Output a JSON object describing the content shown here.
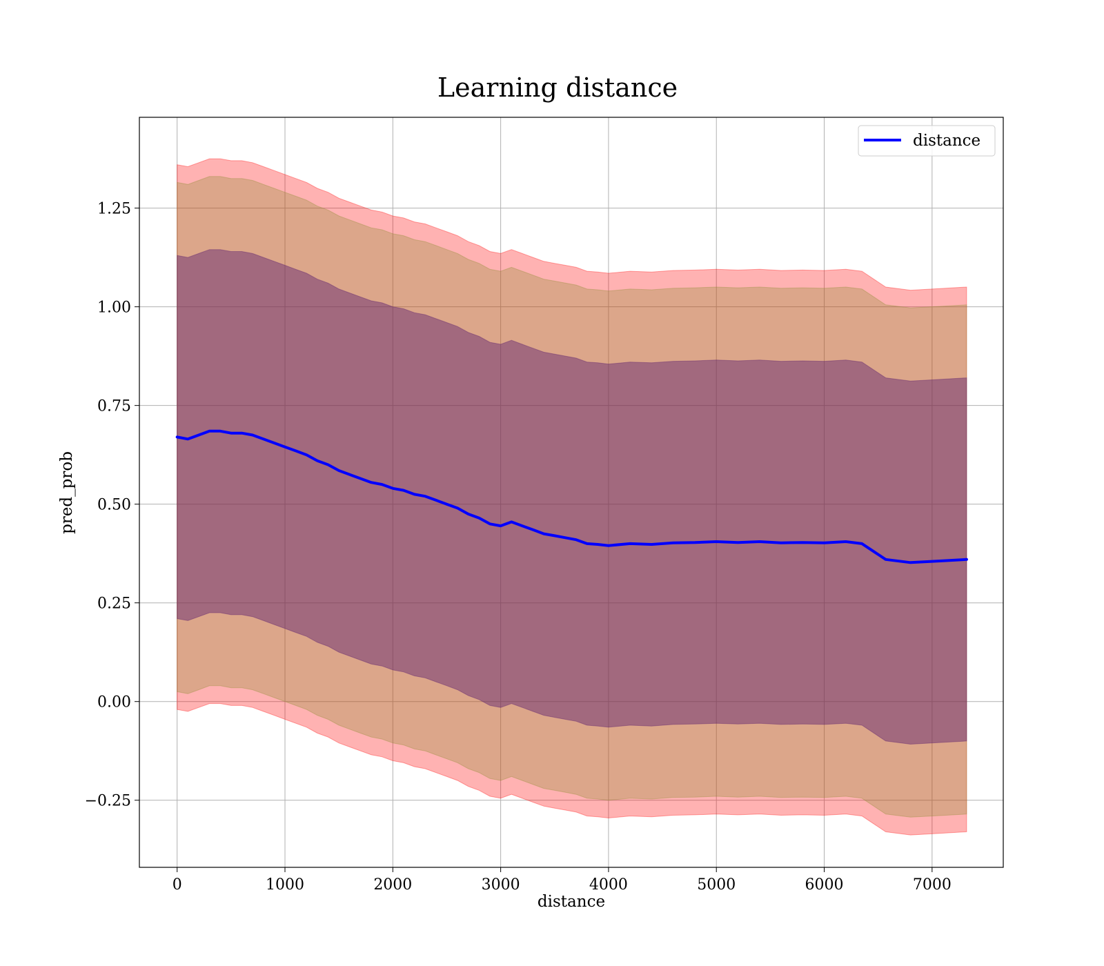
{
  "chart_data": {
    "type": "line",
    "title": "Learning distance",
    "xlabel": "distance",
    "ylabel": "pred_prob",
    "xlim": [
      -350,
      7660
    ],
    "ylim": [
      -0.42,
      1.48
    ],
    "xticks": [
      0,
      1000,
      2000,
      3000,
      4000,
      5000,
      6000,
      7000
    ],
    "yticks": [
      -0.25,
      0.0,
      0.25,
      0.5,
      0.75,
      1.0,
      1.25
    ],
    "ytick_labels": [
      "−0.25",
      "0.00",
      "0.25",
      "0.50",
      "0.75",
      "1.00",
      "1.25"
    ],
    "grid": true,
    "legend": {
      "position": "top-right",
      "entries": [
        "distance"
      ]
    },
    "colors": {
      "line": "#0000ff",
      "band_outer": "#ff0000",
      "band_mid": "#8c8c30",
      "band_inner": "#5a1e6e"
    },
    "x": [
      0,
      100,
      200,
      300,
      400,
      500,
      600,
      700,
      800,
      900,
      1000,
      1100,
      1200,
      1300,
      1400,
      1500,
      1600,
      1700,
      1800,
      1900,
      2000,
      2100,
      2200,
      2300,
      2400,
      2500,
      2600,
      2700,
      2800,
      2900,
      3000,
      3100,
      3200,
      3300,
      3400,
      3500,
      3600,
      3700,
      3800,
      3900,
      4000,
      4200,
      4400,
      4600,
      4800,
      5000,
      5200,
      5400,
      5600,
      5800,
      6000,
      6200,
      6350,
      6570,
      6800,
      7000,
      7320
    ],
    "series": [
      {
        "name": "distance",
        "values": [
          0.67,
          0.665,
          0.675,
          0.685,
          0.685,
          0.68,
          0.68,
          0.675,
          0.665,
          0.655,
          0.645,
          0.635,
          0.625,
          0.61,
          0.6,
          0.585,
          0.575,
          0.565,
          0.555,
          0.55,
          0.54,
          0.535,
          0.525,
          0.52,
          0.51,
          0.5,
          0.49,
          0.475,
          0.465,
          0.45,
          0.445,
          0.455,
          0.445,
          0.435,
          0.425,
          0.42,
          0.415,
          0.41,
          0.4,
          0.398,
          0.395,
          0.4,
          0.398,
          0.402,
          0.403,
          0.405,
          0.403,
          0.405,
          0.402,
          0.403,
          0.402,
          0.405,
          0.4,
          0.36,
          0.352,
          0.355,
          0.36
        ],
        "band_inner_halfwidth": 0.46,
        "band_mid_halfwidth": 0.645,
        "band_outer_halfwidth": 0.69
      }
    ]
  }
}
